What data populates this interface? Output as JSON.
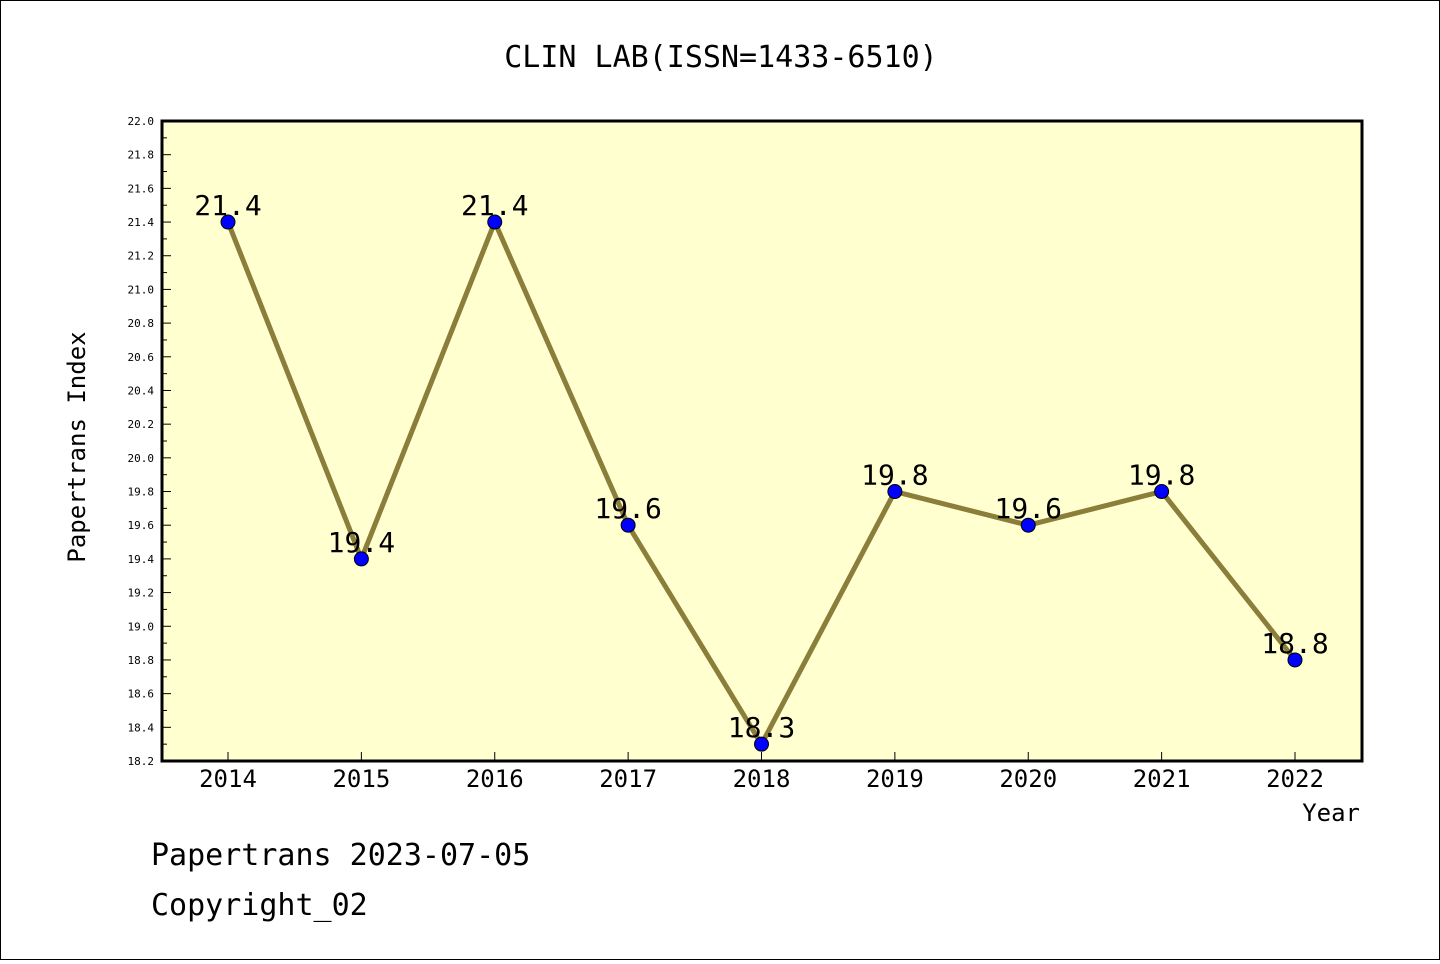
{
  "chart_data": {
    "type": "line",
    "title": "CLIN LAB(ISSN=1433-6510)",
    "xlabel": "Year",
    "ylabel": "Papertrans Index",
    "categories": [
      "2014",
      "2015",
      "2016",
      "2017",
      "2018",
      "2019",
      "2020",
      "2021",
      "2022"
    ],
    "series": [
      {
        "values": [
          21.4,
          19.4,
          21.4,
          19.6,
          18.3,
          19.8,
          19.6,
          19.8,
          18.8
        ],
        "labels": [
          "21.4",
          "19.4",
          "21.4",
          "19.6",
          "18.3",
          "19.8",
          "19.6",
          "19.8",
          "18.8"
        ]
      }
    ],
    "ylim": [
      18.2,
      22.0
    ],
    "yticks": [
      "18.2",
      "18.4",
      "18.6",
      "18.8",
      "19.0",
      "19.2",
      "19.4",
      "19.6",
      "19.8",
      "20.0",
      "20.2",
      "20.4",
      "20.6",
      "20.8",
      "21.0",
      "21.2",
      "21.4",
      "21.6",
      "21.8",
      "22.0"
    ],
    "grid": false,
    "legend": "none",
    "colors": {
      "plot_background": "#ffffd0",
      "line": "#8b7d3a",
      "marker": "#0000ff"
    }
  },
  "footer": {
    "line1": "Papertrans 2023-07-05",
    "line2": "Copyright_02"
  }
}
